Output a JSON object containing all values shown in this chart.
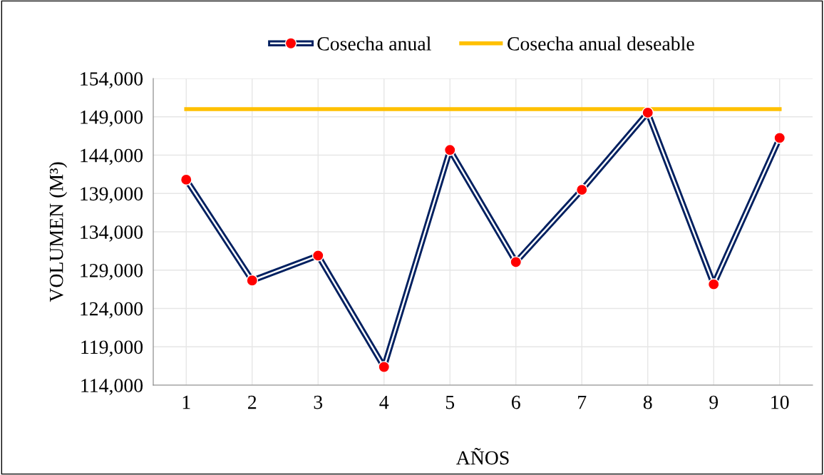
{
  "chart_data": {
    "type": "line",
    "xlabel": "AÑOS",
    "ylabel": "VOLUMEN (M³)",
    "categories": [
      "1",
      "2",
      "3",
      "4",
      "5",
      "6",
      "7",
      "8",
      "9",
      "10"
    ],
    "series": [
      {
        "name": "Cosecha anual",
        "color": "#002060",
        "marker": "circle",
        "values": [
          140800,
          127650,
          130900,
          116370,
          144670,
          130050,
          139480,
          149540,
          127150,
          146240
        ]
      },
      {
        "name": "Cosecha anual deseable",
        "color": "#ffc000",
        "marker": "none",
        "values": [
          150000,
          150000,
          150000,
          150000,
          150000,
          150000,
          150000,
          150000,
          150000,
          150000
        ]
      }
    ],
    "ylim": [
      114000,
      154000
    ],
    "yticks": [
      {
        "value": 114000,
        "label": "114,000"
      },
      {
        "value": 119000,
        "label": "119,000"
      },
      {
        "value": 124000,
        "label": "124,000"
      },
      {
        "value": 129000,
        "label": "129,000"
      },
      {
        "value": 134000,
        "label": "134,000"
      },
      {
        "value": 139000,
        "label": "139,000"
      },
      {
        "value": 144000,
        "label": "144,000"
      },
      {
        "value": 149000,
        "label": "149,000"
      },
      {
        "value": 154000,
        "label": "154,000"
      }
    ],
    "grid": true,
    "legend": "top"
  }
}
